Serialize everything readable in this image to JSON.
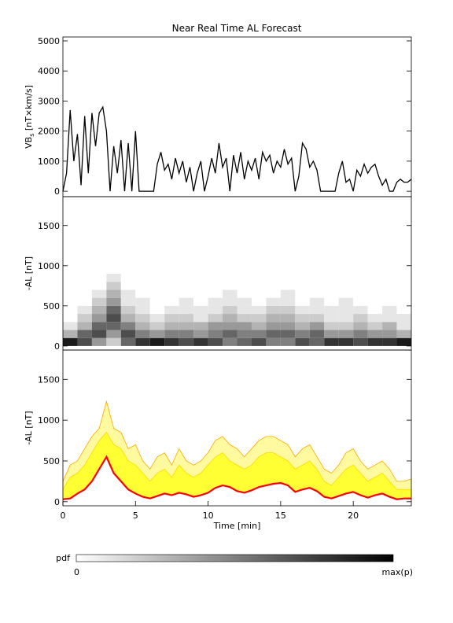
{
  "chart_data": [
    {
      "type": "line",
      "title": "Near Real Time AL Forecast",
      "y_label": {
        "main": "VB",
        "sub": "s",
        "unit": " [nT×km/s]"
      },
      "color": "#000000",
      "xlim": [
        0,
        24
      ],
      "ylim": [
        -180,
        5130
      ],
      "yticks": [
        0,
        1000,
        2000,
        3000,
        4000,
        5000
      ],
      "x": [
        0,
        0.25,
        0.5,
        0.75,
        1,
        1.25,
        1.5,
        1.75,
        2,
        2.25,
        2.5,
        2.75,
        3,
        3.25,
        3.5,
        3.75,
        4,
        4.25,
        4.5,
        4.75,
        5,
        5.25,
        5.5,
        5.75,
        6,
        6.25,
        6.5,
        6.75,
        7,
        7.25,
        7.5,
        7.75,
        8,
        8.25,
        8.5,
        8.75,
        9,
        9.25,
        9.5,
        9.75,
        10,
        10.25,
        10.5,
        10.75,
        11,
        11.25,
        11.5,
        11.75,
        12,
        12.25,
        12.5,
        12.75,
        13,
        13.25,
        13.5,
        13.75,
        14,
        14.25,
        14.5,
        14.75,
        15,
        15.25,
        15.5,
        15.75,
        16,
        16.25,
        16.5,
        16.75,
        17,
        17.25,
        17.5,
        17.75,
        18,
        18.25,
        18.5,
        18.75,
        19,
        19.25,
        19.5,
        19.75,
        20,
        20.25,
        20.5,
        20.75,
        21,
        21.25,
        21.5,
        21.75,
        22,
        22.25,
        22.5,
        22.75,
        23,
        23.25,
        23.5,
        23.75,
        24
      ],
      "values": [
        0,
        600,
        2700,
        1000,
        1900,
        200,
        2500,
        600,
        2600,
        1500,
        2600,
        2800,
        2000,
        0,
        1500,
        600,
        1700,
        0,
        1600,
        0,
        2000,
        0,
        0,
        0,
        0,
        0,
        900,
        1300,
        700,
        900,
        400,
        1100,
        600,
        1000,
        300,
        800,
        0,
        600,
        1000,
        0,
        500,
        1100,
        600,
        1600,
        800,
        1100,
        0,
        1200,
        600,
        1300,
        400,
        1000,
        700,
        1100,
        400,
        1300,
        1000,
        1200,
        600,
        1000,
        800,
        1400,
        900,
        1100,
        0,
        500,
        1600,
        1400,
        800,
        1000,
        700,
        0,
        0,
        0,
        0,
        0,
        600,
        1000,
        300,
        400,
        0,
        700,
        500,
        900,
        600,
        800,
        900,
        500,
        200,
        400,
        0,
        0,
        300,
        400,
        300,
        300,
        400
      ]
    },
    {
      "type": "heatmap",
      "y_label": "-AL [nT]",
      "colormap": [
        "#ffffff",
        "#000000"
      ],
      "colorbar": {
        "label": "pdf",
        "min_label": "0",
        "max_label": "max(p)"
      },
      "xlim": [
        0,
        24
      ],
      "ylim": [
        -50,
        1860
      ],
      "yticks": [
        0,
        500,
        1000,
        1500
      ],
      "xbins": [
        0,
        1,
        2,
        3,
        4,
        5,
        6,
        7,
        8,
        9,
        10,
        11,
        12,
        13,
        14,
        15,
        16,
        17,
        18,
        19,
        20,
        21,
        22,
        23,
        24
      ],
      "ybins": [
        0,
        100,
        200,
        300,
        400,
        500,
        600,
        700,
        800,
        900
      ],
      "z": [
        [
          0.9,
          0.3,
          0.1,
          0,
          0,
          0,
          0,
          0,
          0
        ],
        [
          0.7,
          0.6,
          0.3,
          0.2,
          0.1,
          0,
          0,
          0,
          0
        ],
        [
          0.4,
          0.7,
          0.6,
          0.4,
          0.3,
          0.2,
          0.1,
          0,
          0
        ],
        [
          0.2,
          0.4,
          0.6,
          0.7,
          0.6,
          0.4,
          0.3,
          0.2,
          0.1
        ],
        [
          0.6,
          0.7,
          0.5,
          0.3,
          0.2,
          0.1,
          0.1,
          0,
          0
        ],
        [
          0.8,
          0.5,
          0.3,
          0.2,
          0.1,
          0.1,
          0,
          0,
          0
        ],
        [
          0.9,
          0.4,
          0.2,
          0.1,
          0,
          0,
          0,
          0,
          0
        ],
        [
          0.8,
          0.5,
          0.3,
          0.2,
          0.1,
          0,
          0,
          0,
          0
        ],
        [
          0.7,
          0.5,
          0.3,
          0.2,
          0.1,
          0.1,
          0,
          0,
          0
        ],
        [
          0.8,
          0.4,
          0.3,
          0.1,
          0.1,
          0,
          0,
          0,
          0
        ],
        [
          0.7,
          0.5,
          0.4,
          0.2,
          0.1,
          0.1,
          0,
          0,
          0
        ],
        [
          0.5,
          0.6,
          0.4,
          0.3,
          0.2,
          0.1,
          0.1,
          0,
          0
        ],
        [
          0.6,
          0.5,
          0.4,
          0.2,
          0.1,
          0.1,
          0,
          0,
          0
        ],
        [
          0.7,
          0.5,
          0.3,
          0.2,
          0.1,
          0,
          0,
          0,
          0
        ],
        [
          0.5,
          0.6,
          0.4,
          0.3,
          0.2,
          0.1,
          0,
          0,
          0
        ],
        [
          0.5,
          0.6,
          0.4,
          0.3,
          0.2,
          0.1,
          0.1,
          0,
          0
        ],
        [
          0.7,
          0.5,
          0.3,
          0.2,
          0.1,
          0,
          0,
          0,
          0
        ],
        [
          0.6,
          0.6,
          0.4,
          0.2,
          0.1,
          0.1,
          0,
          0,
          0
        ],
        [
          0.8,
          0.4,
          0.2,
          0.1,
          0.1,
          0,
          0,
          0,
          0
        ],
        [
          0.8,
          0.4,
          0.2,
          0.1,
          0.1,
          0.1,
          0,
          0,
          0
        ],
        [
          0.7,
          0.5,
          0.3,
          0.2,
          0.1,
          0,
          0,
          0,
          0
        ],
        [
          0.8,
          0.4,
          0.2,
          0.1,
          0,
          0,
          0,
          0,
          0
        ],
        [
          0.8,
          0.4,
          0.3,
          0.1,
          0.1,
          0,
          0,
          0,
          0
        ],
        [
          0.9,
          0.3,
          0.1,
          0.1,
          0,
          0,
          0,
          0,
          0
        ]
      ]
    },
    {
      "type": "band",
      "y_label": "-AL [nT]",
      "x_label": "Time [min]",
      "xlim": [
        0,
        24
      ],
      "ylim": [
        -50,
        1860
      ],
      "yticks": [
        0,
        500,
        1000,
        1500
      ],
      "xticks": [
        0,
        5,
        10,
        15,
        20
      ],
      "x": [
        0,
        0.5,
        1,
        1.5,
        2,
        2.5,
        3,
        3.5,
        4,
        4.5,
        5,
        5.5,
        6,
        6.5,
        7,
        7.5,
        8,
        8.5,
        9,
        9.5,
        10,
        10.5,
        11,
        11.5,
        12,
        12.5,
        13,
        13.5,
        14,
        14.5,
        15,
        15.5,
        16,
        16.5,
        17,
        17.5,
        18,
        18.5,
        19,
        19.5,
        20,
        20.5,
        21,
        21.5,
        22,
        22.5,
        23,
        23.5,
        24
      ],
      "series": [
        {
          "color": "#fffaa0",
          "edge": "#ffa500",
          "values": [
            250,
            450,
            500,
            650,
            800,
            900,
            1230,
            900,
            850,
            650,
            700,
            500,
            400,
            550,
            600,
            450,
            650,
            500,
            450,
            500,
            600,
            750,
            800,
            700,
            650,
            550,
            650,
            750,
            800,
            800,
            750,
            700,
            550,
            650,
            700,
            550,
            400,
            350,
            450,
            600,
            650,
            500,
            400,
            450,
            500,
            400,
            250,
            250,
            280
          ]
        },
        {
          "color": "#ffff33",
          "edge": "#ffd700",
          "values": [
            150,
            300,
            350,
            450,
            600,
            750,
            850,
            700,
            650,
            500,
            450,
            350,
            250,
            350,
            400,
            300,
            450,
            350,
            300,
            350,
            450,
            550,
            600,
            500,
            450,
            400,
            450,
            550,
            600,
            600,
            550,
            500,
            400,
            450,
            500,
            400,
            250,
            200,
            300,
            400,
            450,
            350,
            250,
            300,
            350,
            250,
            150,
            150,
            150
          ]
        },
        {
          "color": "#ff0000",
          "values": [
            30,
            40,
            100,
            150,
            250,
            400,
            550,
            350,
            250,
            150,
            100,
            60,
            40,
            70,
            100,
            80,
            110,
            90,
            60,
            80,
            110,
            170,
            200,
            180,
            130,
            110,
            140,
            180,
            200,
            220,
            230,
            200,
            120,
            150,
            170,
            130,
            60,
            40,
            70,
            100,
            120,
            80,
            50,
            80,
            100,
            60,
            30,
            40,
            40
          ]
        }
      ]
    }
  ]
}
